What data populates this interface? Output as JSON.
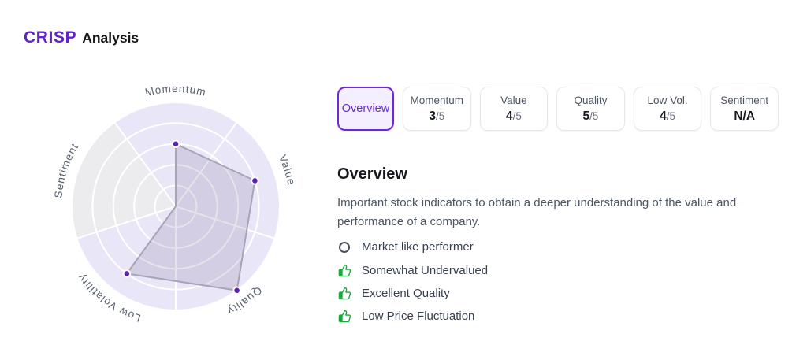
{
  "header": {
    "brand": "CRISP",
    "brand_suffix": "Analysis"
  },
  "tabs": [
    {
      "label": "Overview",
      "active": true
    },
    {
      "label": "Momentum",
      "score": "3",
      "denom": "/5"
    },
    {
      "label": "Value",
      "score": "4",
      "denom": "/5"
    },
    {
      "label": "Quality",
      "score": "5",
      "denom": "/5"
    },
    {
      "label": "Low Vol.",
      "score": "4",
      "denom": "/5"
    },
    {
      "label": "Sentiment",
      "score": "N/A",
      "denom": ""
    }
  ],
  "overview": {
    "title": "Overview",
    "description": "Important stock indicators to obtain a deeper understanding of the value and performance of a company.",
    "items": [
      {
        "icon": "circle-icon",
        "label": "Market like performer"
      },
      {
        "icon": "thumb-up-icon",
        "label": "Somewhat Undervalued"
      },
      {
        "icon": "thumb-up-icon",
        "label": "Excellent Quality"
      },
      {
        "icon": "thumb-up-icon",
        "label": "Low Price Fluctuation"
      }
    ]
  },
  "chart_data": {
    "type": "radar",
    "categories": [
      "Momentum",
      "Value",
      "Quality",
      "Low Volatility",
      "Sentiment"
    ],
    "values": [
      3,
      4,
      5,
      4,
      null
    ],
    "max": 5,
    "na_axis": "Sentiment",
    "title": "",
    "legend": "none",
    "grid": "circular, 5 rings, white grid lines on lavender disc"
  },
  "colors": {
    "accent_purple": "#6d28d9",
    "logo_purple": "#6122cd",
    "dot_purple": "#5b21b6",
    "positive_green": "#1aa73c",
    "chart_disc": "#e9e6f8",
    "na_sector": "#ececef",
    "polygon_fill": "rgba(109,99,140,0.18)",
    "polygon_stroke": "#a9a3b8",
    "tab_border": "#e6e7ea"
  }
}
